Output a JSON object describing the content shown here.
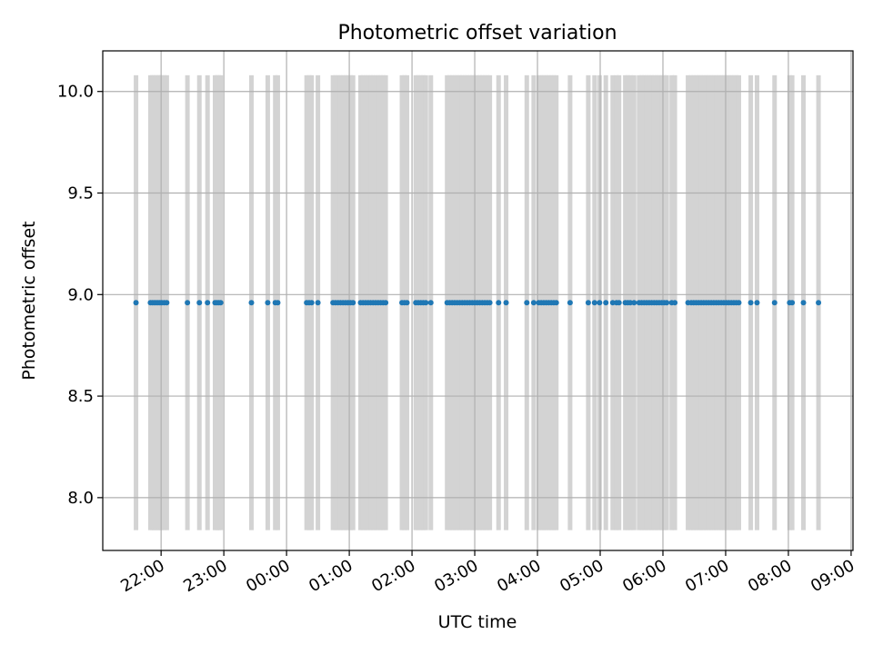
{
  "chart_data": {
    "type": "scatter",
    "title": "Photometric offset variation",
    "xlabel": "UTC time",
    "ylabel": "Photometric offset",
    "x_tick_labels": [
      "22:00",
      "23:00",
      "00:00",
      "01:00",
      "02:00",
      "03:00",
      "04:00",
      "05:00",
      "06:00",
      "07:00",
      "08:00",
      "09:00"
    ],
    "x_tick_hours": [
      22,
      23,
      24,
      25,
      26,
      27,
      28,
      29,
      30,
      31,
      32,
      33
    ],
    "y_ticks": [
      8.0,
      8.5,
      9.0,
      9.5,
      10.0
    ],
    "y_tick_labels": [
      "8.0",
      "8.5",
      "9.0",
      "9.5",
      "10.0"
    ],
    "xlim_hours": [
      21.07,
      33.03
    ],
    "ylim": [
      7.74,
      10.2
    ],
    "grid": true,
    "offset_value": 8.96,
    "span_range": [
      7.84,
      10.08
    ],
    "colors": {
      "points": "#1f77b4",
      "spans": "#d3d3d3",
      "grid": "#b0b0b0"
    },
    "observation_times_hours": [
      21.6,
      21.83,
      21.86,
      21.89,
      21.92,
      21.95,
      21.98,
      22.01,
      22.05,
      22.09,
      22.42,
      22.61,
      22.74,
      22.86,
      22.89,
      22.92,
      22.95,
      23.44,
      23.7,
      23.82,
      23.86,
      24.32,
      24.36,
      24.4,
      24.5,
      24.74,
      24.78,
      24.82,
      24.86,
      24.9,
      24.94,
      24.98,
      25.02,
      25.06,
      25.18,
      25.22,
      25.26,
      25.3,
      25.34,
      25.38,
      25.42,
      25.46,
      25.5,
      25.54,
      25.58,
      25.84,
      25.88,
      25.92,
      26.06,
      26.1,
      26.14,
      26.18,
      26.22,
      26.3,
      26.56,
      26.6,
      26.64,
      26.68,
      26.72,
      26.76,
      26.8,
      26.84,
      26.88,
      26.92,
      26.96,
      27.0,
      27.04,
      27.08,
      27.12,
      27.16,
      27.2,
      27.24,
      27.38,
      27.5,
      27.83,
      27.94,
      28.02,
      28.06,
      28.1,
      28.14,
      28.18,
      28.22,
      28.26,
      28.3,
      28.52,
      28.81,
      28.91,
      28.99,
      29.09,
      29.2,
      29.26,
      29.3,
      29.4,
      29.44,
      29.48,
      29.54,
      29.62,
      29.66,
      29.7,
      29.74,
      29.78,
      29.82,
      29.86,
      29.9,
      29.94,
      29.98,
      30.02,
      30.06,
      30.14,
      30.19,
      30.4,
      30.45,
      30.49,
      30.53,
      30.57,
      30.61,
      30.65,
      30.69,
      30.73,
      30.77,
      30.81,
      30.85,
      30.89,
      30.93,
      30.97,
      31.01,
      31.05,
      31.09,
      31.13,
      31.17,
      31.21,
      31.4,
      31.5,
      31.78,
      32.02,
      32.06,
      32.24,
      32.48
    ]
  }
}
